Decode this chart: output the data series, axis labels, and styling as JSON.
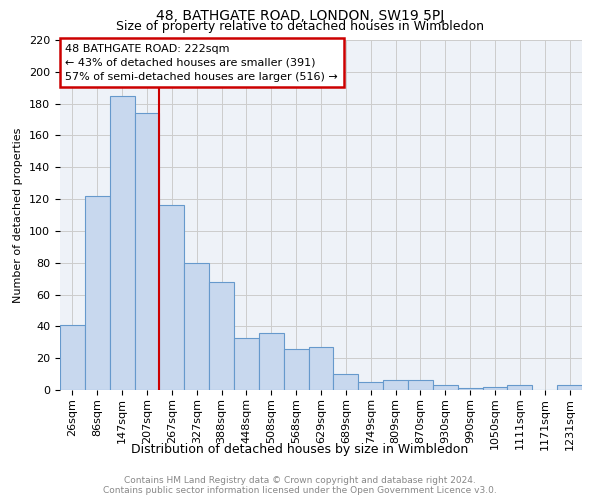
{
  "title": "48, BATHGATE ROAD, LONDON, SW19 5PJ",
  "subtitle": "Size of property relative to detached houses in Wimbledon",
  "xlabel": "Distribution of detached houses by size in Wimbledon",
  "ylabel": "Number of detached properties",
  "categories": [
    "26sqm",
    "86sqm",
    "147sqm",
    "207sqm",
    "267sqm",
    "327sqm",
    "388sqm",
    "448sqm",
    "508sqm",
    "568sqm",
    "629sqm",
    "689sqm",
    "749sqm",
    "809sqm",
    "870sqm",
    "930sqm",
    "990sqm",
    "1050sqm",
    "1111sqm",
    "1171sqm",
    "1231sqm"
  ],
  "values": [
    41,
    122,
    185,
    174,
    116,
    80,
    68,
    33,
    36,
    26,
    27,
    10,
    5,
    6,
    6,
    3,
    1,
    2,
    3,
    0,
    3
  ],
  "bar_color": "#c8d8ee",
  "bar_edge_color": "#6699cc",
  "grid_color": "#cccccc",
  "background_color": "#eef2f8",
  "vline_x": 3.5,
  "vline_color": "#cc0000",
  "annotation_text": "48 BATHGATE ROAD: 222sqm\n← 43% of detached houses are smaller (391)\n57% of semi-detached houses are larger (516) →",
  "annotation_box_color": "#cc0000",
  "footer_line1": "Contains HM Land Registry data © Crown copyright and database right 2024.",
  "footer_line2": "Contains public sector information licensed under the Open Government Licence v3.0.",
  "ylim": [
    0,
    220
  ],
  "yticks": [
    0,
    20,
    40,
    60,
    80,
    100,
    120,
    140,
    160,
    180,
    200,
    220
  ],
  "title_fontsize": 10,
  "subtitle_fontsize": 9,
  "ylabel_fontsize": 8,
  "xlabel_fontsize": 9,
  "tick_fontsize": 8,
  "footer_fontsize": 6.5,
  "annot_fontsize": 8
}
